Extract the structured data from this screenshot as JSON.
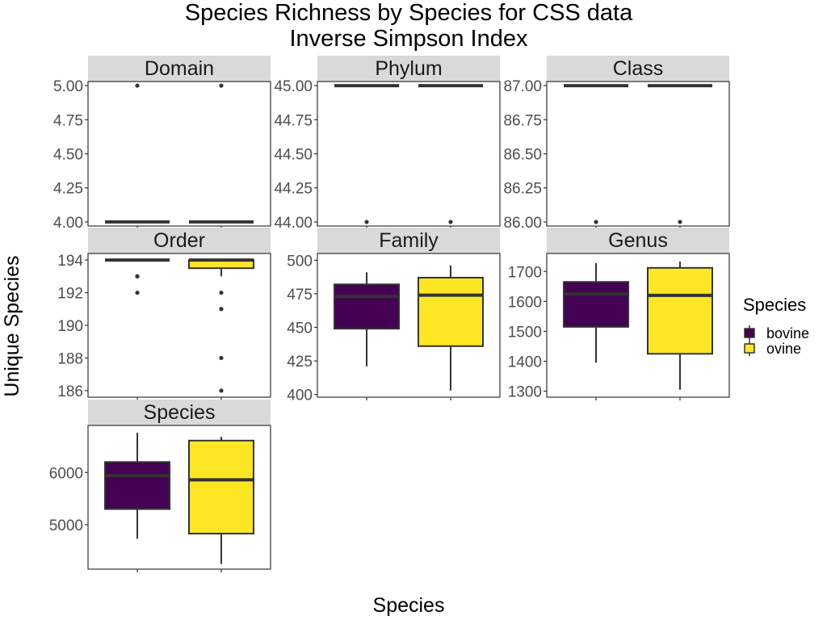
{
  "chart_data": {
    "type": "boxplot",
    "title_line1": "Species Richness by Species for CSS data",
    "title_line2": "Inverse Simpson Index",
    "xlabel": "Species",
    "ylabel": "Unique Species",
    "legend": {
      "title": "Species",
      "position": "right",
      "entries": [
        {
          "name": "bovine",
          "color": "#440154"
        },
        {
          "name": "ovine",
          "color": "#FDE725"
        }
      ]
    },
    "panels": [
      {
        "name": "Domain",
        "ylim": [
          3.97,
          5.03
        ],
        "ticks": [
          4.0,
          4.25,
          4.5,
          4.75,
          5.0
        ],
        "tick_labels": [
          "4.00",
          "4.25",
          "4.50",
          "4.75",
          "5.00"
        ],
        "boxes": [
          {
            "group": "bovine",
            "q1": 4,
            "median": 4,
            "q3": 4,
            "whisker_low": 4,
            "whisker_high": 4,
            "outliers": [
              5
            ]
          },
          {
            "group": "ovine",
            "q1": 4,
            "median": 4,
            "q3": 4,
            "whisker_low": 4,
            "whisker_high": 4,
            "outliers": [
              5
            ]
          }
        ]
      },
      {
        "name": "Phylum",
        "ylim": [
          43.97,
          45.03
        ],
        "ticks": [
          44.0,
          44.25,
          44.5,
          44.75,
          45.0
        ],
        "tick_labels": [
          "44.00",
          "44.25",
          "44.50",
          "44.75",
          "45.00"
        ],
        "boxes": [
          {
            "group": "bovine",
            "q1": 45,
            "median": 45,
            "q3": 45,
            "whisker_low": 45,
            "whisker_high": 45,
            "outliers": [
              44
            ]
          },
          {
            "group": "ovine",
            "q1": 45,
            "median": 45,
            "q3": 45,
            "whisker_low": 45,
            "whisker_high": 45,
            "outliers": [
              44
            ]
          }
        ]
      },
      {
        "name": "Class",
        "ylim": [
          85.97,
          87.03
        ],
        "ticks": [
          86.0,
          86.25,
          86.5,
          86.75,
          87.0
        ],
        "tick_labels": [
          "86.00",
          "86.25",
          "86.50",
          "86.75",
          "87.00"
        ],
        "boxes": [
          {
            "group": "bovine",
            "q1": 87,
            "median": 87,
            "q3": 87,
            "whisker_low": 87,
            "whisker_high": 87,
            "outliers": [
              86
            ]
          },
          {
            "group": "ovine",
            "q1": 87,
            "median": 87,
            "q3": 87,
            "whisker_low": 87,
            "whisker_high": 87,
            "outliers": [
              86
            ]
          }
        ]
      },
      {
        "name": "Order",
        "ylim": [
          185.6,
          194.4
        ],
        "ticks": [
          186,
          188,
          190,
          192,
          194
        ],
        "tick_labels": [
          "186",
          "188",
          "190",
          "192",
          "194"
        ],
        "boxes": [
          {
            "group": "bovine",
            "q1": 194,
            "median": 194,
            "q3": 194,
            "whisker_low": 194,
            "whisker_high": 194,
            "outliers": [
              193,
              193,
              192
            ]
          },
          {
            "group": "ovine",
            "q1": 193.5,
            "median": 194,
            "q3": 194,
            "whisker_low": 193,
            "whisker_high": 194,
            "outliers": [
              192,
              191,
              188,
              186
            ]
          }
        ]
      },
      {
        "name": "Family",
        "ylim": [
          398,
          505
        ],
        "ticks": [
          400,
          425,
          450,
          475,
          500
        ],
        "tick_labels": [
          "400",
          "425",
          "450",
          "475",
          "500"
        ],
        "boxes": [
          {
            "group": "bovine",
            "q1": 449,
            "median": 473,
            "q3": 482,
            "whisker_low": 421,
            "whisker_high": 491,
            "outliers": []
          },
          {
            "group": "ovine",
            "q1": 436,
            "median": 474,
            "q3": 487,
            "whisker_low": 403,
            "whisker_high": 496,
            "outliers": []
          }
        ]
      },
      {
        "name": "Genus",
        "ylim": [
          1280,
          1760
        ],
        "ticks": [
          1300,
          1400,
          1500,
          1600,
          1700
        ],
        "tick_labels": [
          "1300",
          "1400",
          "1500",
          "1600",
          "1700"
        ],
        "boxes": [
          {
            "group": "bovine",
            "q1": 1515,
            "median": 1625,
            "q3": 1665,
            "whisker_low": 1395,
            "whisker_high": 1728,
            "outliers": []
          },
          {
            "group": "ovine",
            "q1": 1425,
            "median": 1620,
            "q3": 1712,
            "whisker_low": 1305,
            "whisker_high": 1733,
            "outliers": []
          }
        ]
      },
      {
        "name": "Species",
        "ylim": [
          4150,
          6900
        ],
        "ticks": [
          5000,
          6000
        ],
        "tick_labels": [
          "5000",
          "6000"
        ],
        "boxes": [
          {
            "group": "bovine",
            "q1": 5300,
            "median": 5940,
            "q3": 6200,
            "whisker_low": 4730,
            "whisker_high": 6760,
            "outliers": []
          },
          {
            "group": "ovine",
            "q1": 4830,
            "median": 5860,
            "q3": 6610,
            "whisker_low": 4250,
            "whisker_high": 6680,
            "outliers": []
          }
        ]
      }
    ]
  }
}
